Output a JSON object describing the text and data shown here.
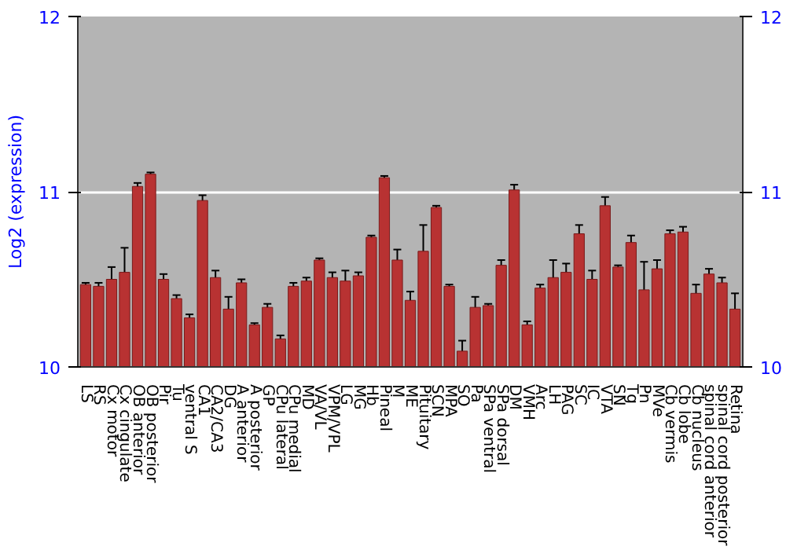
{
  "chart_data": {
    "type": "bar",
    "ylabel": "Log2 (expression)",
    "categories": [
      "LS",
      "RS",
      "Cx motor",
      "Cx cingulate",
      "OB anterior",
      "OB posterior",
      "Pir",
      "Tu",
      "ventral S",
      "CA1",
      "CA2/CA3",
      "DG",
      "A anterior",
      "A posterior",
      "GP",
      "CPu lateral",
      "CPu medial",
      "MD",
      "VA/VL",
      "VPM/VPL",
      "LG",
      "MG",
      "Hb",
      "Pineal",
      "M",
      "ME",
      "Pituitary",
      "SCN",
      "MPA",
      "SO",
      "Pa",
      "SPa ventral",
      "SPa dorsal",
      "DM",
      "VMH",
      "Arc",
      "LH",
      "PAG",
      "SC",
      "IC",
      "VTA",
      "SN",
      "Tg",
      "Pn",
      "MVe",
      "Cb vermis",
      "Cb lobe",
      "Cb nucleus",
      "spinal cord anterior",
      "spinal cord posterior",
      "Retina"
    ],
    "values": [
      10.47,
      10.46,
      10.5,
      10.54,
      11.03,
      11.1,
      10.5,
      10.39,
      10.28,
      10.95,
      10.51,
      10.33,
      10.48,
      10.24,
      10.34,
      10.16,
      10.46,
      10.49,
      10.61,
      10.51,
      10.49,
      10.52,
      10.74,
      11.08,
      10.61,
      10.38,
      10.66,
      10.91,
      10.46,
      10.09,
      10.34,
      10.35,
      10.58,
      11.01,
      10.24,
      10.45,
      10.51,
      10.54,
      10.76,
      10.5,
      10.92,
      10.57,
      10.71,
      10.44,
      10.56,
      10.76,
      10.77,
      10.42,
      10.53,
      10.48,
      10.33
    ],
    "errors": [
      0.01,
      0.02,
      0.07,
      0.14,
      0.02,
      0.01,
      0.03,
      0.02,
      0.02,
      0.03,
      0.04,
      0.07,
      0.02,
      0.01,
      0.02,
      0.02,
      0.02,
      0.02,
      0.01,
      0.03,
      0.06,
      0.02,
      0.01,
      0.01,
      0.06,
      0.05,
      0.15,
      0.01,
      0.01,
      0.06,
      0.06,
      0.01,
      0.03,
      0.03,
      0.02,
      0.02,
      0.1,
      0.05,
      0.05,
      0.05,
      0.05,
      0.01,
      0.04,
      0.16,
      0.05,
      0.02,
      0.03,
      0.05,
      0.03,
      0.03,
      0.09
    ],
    "color": "#b83232",
    "ylim": [
      10,
      12
    ],
    "yticks": [
      10,
      11,
      12
    ],
    "y2lim": [
      10,
      12
    ],
    "y2ticks": [
      10,
      11,
      12
    ],
    "grid": "y"
  }
}
